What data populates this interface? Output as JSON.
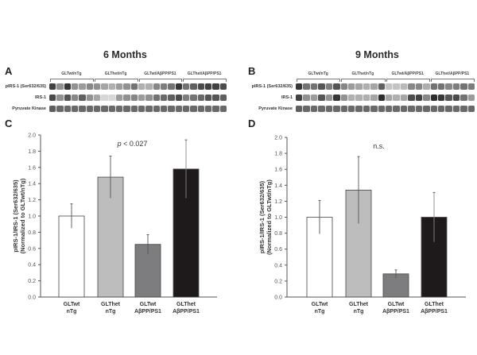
{
  "figure": {
    "titles": [
      "6 Months",
      "9 Months"
    ],
    "panel_labels": [
      "A",
      "B",
      "C",
      "D"
    ]
  },
  "blots": [
    {
      "panel": "A",
      "groups": [
        "GLTwt/nTg",
        "GLThet/nTg",
        "GLTwt/AβPP/PS1",
        "GLThet/AβPP/PS1"
      ],
      "rows": [
        "pIRS-1 (Ser632/635)",
        "IRS-1",
        "Pyruvate Kinase"
      ],
      "intensity": [
        [
          0.85,
          0.45,
          0.9,
          0.45,
          0.4,
          0.5,
          0.45,
          0.35,
          0.3,
          0.4,
          0.45,
          0.6,
          0.3,
          0.3,
          0.5,
          0.55,
          0.6,
          0.9,
          0.6,
          0.7,
          0.8,
          0.85,
          0.85,
          0.8
        ],
        [
          0.8,
          0.45,
          0.75,
          0.5,
          0.7,
          0.45,
          0.35,
          0.1,
          0.1,
          0.4,
          0.45,
          0.5,
          0.4,
          0.45,
          0.6,
          0.65,
          0.7,
          0.8,
          0.55,
          0.6,
          0.65,
          0.75,
          0.75,
          0.7
        ],
        [
          0.7,
          0.65,
          0.65,
          0.65,
          0.65,
          0.65,
          0.65,
          0.65,
          0.65,
          0.65,
          0.65,
          0.65,
          0.65,
          0.65,
          0.65,
          0.65,
          0.65,
          0.65,
          0.65,
          0.65,
          0.65,
          0.65,
          0.65,
          0.65
        ]
      ]
    },
    {
      "panel": "B",
      "groups": [
        "GLTwt/nTg",
        "GLThet/nTg",
        "GLTwt/AβPP/PS1",
        "GLThet/AβPP/PS1"
      ],
      "rows": [
        "pIRS-1 (Ser632/635)",
        "IRS-1",
        "Pyruvate Kinase"
      ],
      "intensity": [
        [
          0.9,
          0.6,
          0.6,
          0.75,
          0.55,
          0.75,
          0.5,
          0.4,
          0.35,
          0.3,
          0.35,
          0.7,
          0.2,
          0.2,
          0.25,
          0.5,
          0.5,
          0.3,
          0.6,
          0.6,
          0.5,
          0.55,
          0.6,
          0.55
        ],
        [
          0.85,
          0.45,
          0.4,
          0.75,
          0.45,
          0.9,
          0.45,
          0.3,
          0.3,
          0.3,
          0.35,
          0.95,
          0.35,
          0.3,
          0.35,
          0.8,
          0.85,
          0.5,
          0.95,
          0.9,
          0.75,
          0.8,
          0.6,
          0.4
        ],
        [
          0.7,
          0.65,
          0.65,
          0.65,
          0.65,
          0.65,
          0.65,
          0.65,
          0.65,
          0.65,
          0.65,
          0.65,
          0.65,
          0.65,
          0.65,
          0.65,
          0.65,
          0.65,
          0.65,
          0.65,
          0.65,
          0.65,
          0.65,
          0.65
        ]
      ]
    }
  ],
  "chart_data": [
    {
      "panel": "C",
      "type": "bar",
      "title": "6 Months",
      "categories": [
        "GLTwt nTg",
        "GLThet nTg",
        "GLTwt AβPP/PS1",
        "GLThet AβPP/PS1"
      ],
      "category_lines": [
        [
          "GLTwt",
          "nTg"
        ],
        [
          "GLThet",
          "nTg"
        ],
        [
          "GLTwt",
          "AβPP/PS1"
        ],
        [
          "GLThet",
          "AβPP/PS1"
        ]
      ],
      "values": [
        1.0,
        1.48,
        0.65,
        1.58
      ],
      "error": [
        0.15,
        0.26,
        0.12,
        0.36
      ],
      "bar_colors": [
        "#ffffff",
        "#bdbdbd",
        "#7d7d80",
        "#1e1a1b"
      ],
      "ylabel_lines": [
        "pIRS-1/IRS-1 (Ser632/635)",
        "(Normalized to GLTwt/nTg)"
      ],
      "xlabel": "",
      "ylim": [
        0.0,
        2.0
      ],
      "yticks": [
        "0.0",
        "0.2",
        "0.4",
        "0.6",
        "0.8",
        "1.0",
        "1.2",
        "1.4",
        "1.6",
        "1.8",
        "2.0"
      ],
      "annotation": {
        "prefix": "p",
        "text": " < 0.027"
      },
      "grid": false,
      "legend": "none"
    },
    {
      "panel": "D",
      "type": "bar",
      "title": "9 Months",
      "categories": [
        "GLTwt nTg",
        "GLThet nTg",
        "GLTwt AβPP/PS1",
        "GLThet AβPP/PS1"
      ],
      "category_lines": [
        [
          "GLTwt",
          "nTg"
        ],
        [
          "GLThet",
          "nTg"
        ],
        [
          "GLTwt",
          "AβPP/PS1"
        ],
        [
          "GLThet",
          "AβPP/PS1"
        ]
      ],
      "values": [
        1.0,
        1.34,
        0.29,
        1.0
      ],
      "error": [
        0.21,
        0.42,
        0.05,
        0.31
      ],
      "bar_colors": [
        "#ffffff",
        "#bdbdbd",
        "#7d7d80",
        "#1e1a1b"
      ],
      "ylabel_lines": [
        "pIRS-1/IRS-1 (Ser632/635)",
        "(Normalized to GLTwt/nTg)"
      ],
      "xlabel": "",
      "ylim": [
        0.0,
        2.0
      ],
      "yticks": [
        "0.0",
        "0.2",
        "0.4",
        "0.6",
        "0.8",
        "1.0",
        "1.2",
        "1.4",
        "1.6",
        "1.8",
        "2.0"
      ],
      "annotation": {
        "prefix": "",
        "text": "n.s."
      },
      "grid": false,
      "legend": "none"
    }
  ]
}
